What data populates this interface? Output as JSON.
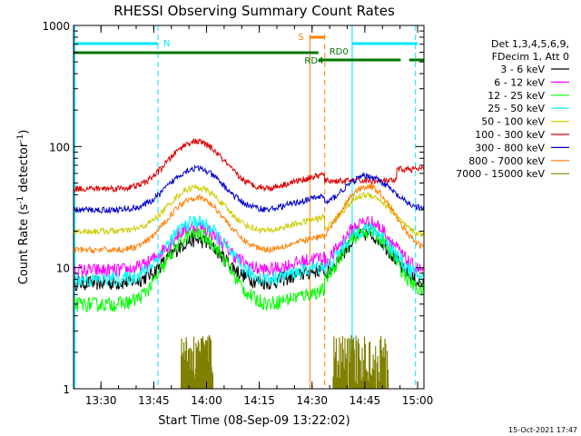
{
  "chart_data": {
    "type": "line",
    "title": "RHESSI Observing Summary Count Rates",
    "xlabel": "Start Time (08-Sep-09 13:22:02)",
    "ylabel": "Count Rate (s",
    "ylabel_sup1": "-1",
    "ylabel_mid": " detector",
    "ylabel_sup2": "-1",
    "ylabel_end": ")",
    "yscale": "log",
    "ylim": [
      1,
      1000
    ],
    "xlim_minutes": [
      13.37,
      15.03
    ],
    "x_tick_labels": [
      "13:30",
      "13:45",
      "14:00",
      "14:15",
      "14:30",
      "14:45",
      "15:00"
    ],
    "x_tick_values": [
      13.5,
      13.75,
      14.0,
      14.25,
      14.5,
      14.75,
      15.0
    ],
    "y_tick_labels": [
      "1",
      "10",
      "100",
      "1000"
    ],
    "y_tick_values": [
      1,
      10,
      100,
      1000
    ],
    "timestamp": "15-Oct-2021 17:47",
    "legend": {
      "header": [
        "Det 1,3,4,5,6,9,",
        "FDecim 1, Att 0"
      ],
      "entries": [
        {
          "label": "3 - 6 keV",
          "color": "#000000"
        },
        {
          "label": "6 - 12 keV",
          "color": "#ff00ff"
        },
        {
          "label": "12 - 25 keV",
          "color": "#00ff00"
        },
        {
          "label": "25 - 50 keV",
          "color": "#00ffff"
        },
        {
          "label": "50 - 100 keV",
          "color": "#cccc00"
        },
        {
          "label": "100 - 300 keV",
          "color": "#dd0000"
        },
        {
          "label": "300 - 800 keV",
          "color": "#0000cc"
        },
        {
          "label": "800 - 7000 keV",
          "color": "#ff7f00"
        },
        {
          "label": "7000 - 15000 keV",
          "color": "#808000"
        }
      ]
    },
    "series": [
      {
        "name": "3 - 6 keV",
        "color": "#000000",
        "base": 7.5,
        "peak1": 17,
        "peak2": 19,
        "after_drop": 7
      },
      {
        "name": "6 - 12 keV",
        "color": "#ff00ff",
        "base": 9.5,
        "peak1": 22,
        "peak2": 24,
        "after_drop": 9
      },
      {
        "name": "12 - 25 keV",
        "color": "#00ff00",
        "base": 5,
        "peak1": 19,
        "peak2": 20,
        "after_drop": 6
      },
      {
        "name": "25 - 50 keV",
        "color": "#00ffff",
        "base": 8,
        "peak1": 24,
        "peak2": 21,
        "after_drop": 8
      },
      {
        "name": "50 - 100 keV",
        "color": "#cccc00",
        "base": 20,
        "peak1": 46,
        "peak2": 40,
        "after_drop": 18
      },
      {
        "name": "100 - 300 keV",
        "color": "#dd0000",
        "base": 45,
        "peak1": 110,
        "peak2": 52,
        "after_drop": 52
      },
      {
        "name": "300 - 800 keV",
        "color": "#0000cc",
        "base": 30,
        "peak1": 66,
        "peak2": 57,
        "after_drop": 30
      },
      {
        "name": "800 - 7000 keV",
        "color": "#ff7f00",
        "base": 14,
        "peak1": 38,
        "peak2": 47,
        "after_drop": 14
      }
    ],
    "bursts_7000_15000": [
      {
        "start": 13.88,
        "end": 14.03
      },
      {
        "start": 14.6,
        "end": 14.86
      }
    ],
    "annotations": {
      "night_label": "N",
      "saa_label": "S",
      "rd0_label": "RD0",
      "rd4_label": "RD4",
      "night_intervals": [
        [
          13.37,
          13.77
        ],
        [
          14.69,
          15.0
        ]
      ],
      "saa_interval": [
        14.49,
        14.56
      ],
      "rd0_intervals": [
        [
          14.53,
          14.92
        ],
        [
          14.96,
          15.03
        ]
      ],
      "rd4_interval": [
        13.37,
        14.53
      ],
      "cyan_lines": [
        13.77,
        14.69,
        14.99
      ],
      "orange_lines": [
        14.49,
        14.56
      ]
    }
  }
}
